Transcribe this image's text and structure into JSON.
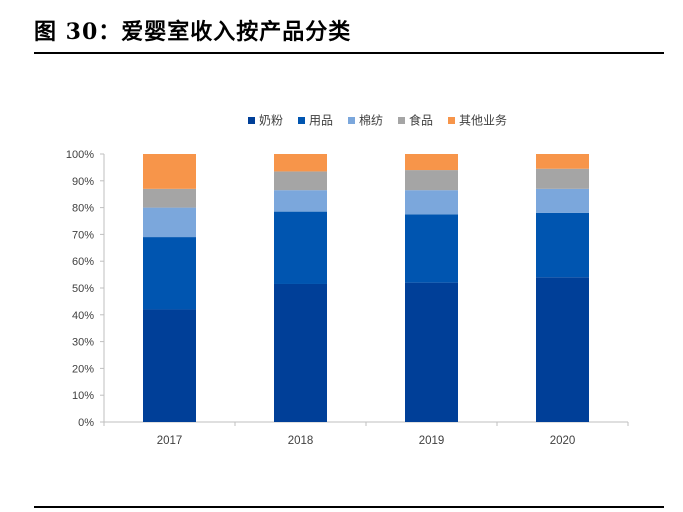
{
  "figure_title": "图 30：爱婴室收入按产品分类",
  "chart_data": {
    "type": "bar",
    "stacked": true,
    "categories": [
      "2017",
      "2018",
      "2019",
      "2020"
    ],
    "series": [
      {
        "name": "奶粉",
        "color": "#003f98",
        "values": [
          42,
          51.5,
          52,
          54
        ]
      },
      {
        "name": "用品",
        "color": "#0055b0",
        "values": [
          27,
          27,
          25.5,
          24
        ]
      },
      {
        "name": "棉纺",
        "color": "#7ba7dc",
        "values": [
          11,
          8,
          9,
          9
        ]
      },
      {
        "name": "食品",
        "color": "#a5a5a5",
        "values": [
          7,
          7,
          7.5,
          7.5
        ]
      },
      {
        "name": "其他业务",
        "color": "#f7954a",
        "values": [
          13,
          6.5,
          6,
          5.5
        ]
      }
    ],
    "ylim": [
      0,
      100
    ],
    "yticks": [
      "0%",
      "10%",
      "20%",
      "30%",
      "40%",
      "50%",
      "60%",
      "70%",
      "80%",
      "90%",
      "100%"
    ],
    "legend_position": "top",
    "grid": false
  }
}
